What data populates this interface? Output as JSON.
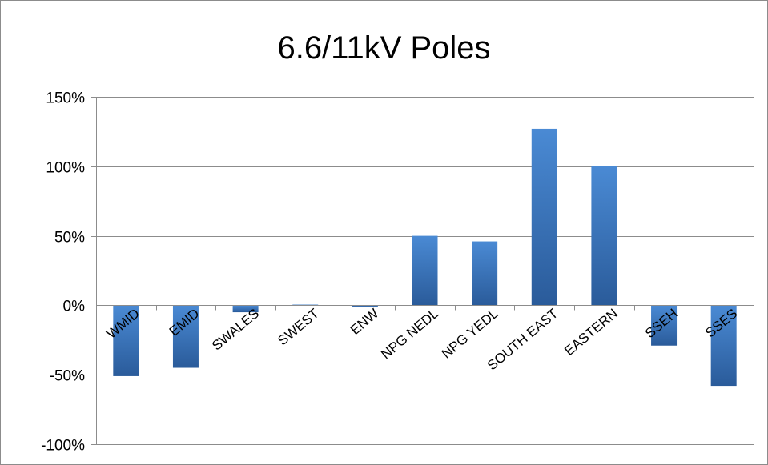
{
  "chart_data": {
    "type": "bar",
    "title": "6.6/11kV Poles",
    "xlabel": "",
    "ylabel": "",
    "categories": [
      "WMID",
      "EMID",
      "SWALES",
      "SWEST",
      "ENW",
      "NPG NEDL",
      "NPG YEDL",
      "SOUTH EAST",
      "EASTERN",
      "SSEH",
      "SSES"
    ],
    "values": [
      -51,
      -45,
      -5,
      0.5,
      -1,
      50,
      46,
      127,
      100,
      -29,
      -58
    ],
    "ylim": [
      -100,
      150
    ],
    "yticks": [
      150,
      100,
      50,
      0,
      -50,
      -100
    ],
    "ytick_labels": [
      "150%",
      "100%",
      "50%",
      "0%",
      "-50%",
      "-100%"
    ],
    "grid": true,
    "legend": "none",
    "colors": {
      "bar_light": "#4a8ad4",
      "bar_dark": "#2a5b9a",
      "gridline": "#8c8c8c"
    }
  }
}
